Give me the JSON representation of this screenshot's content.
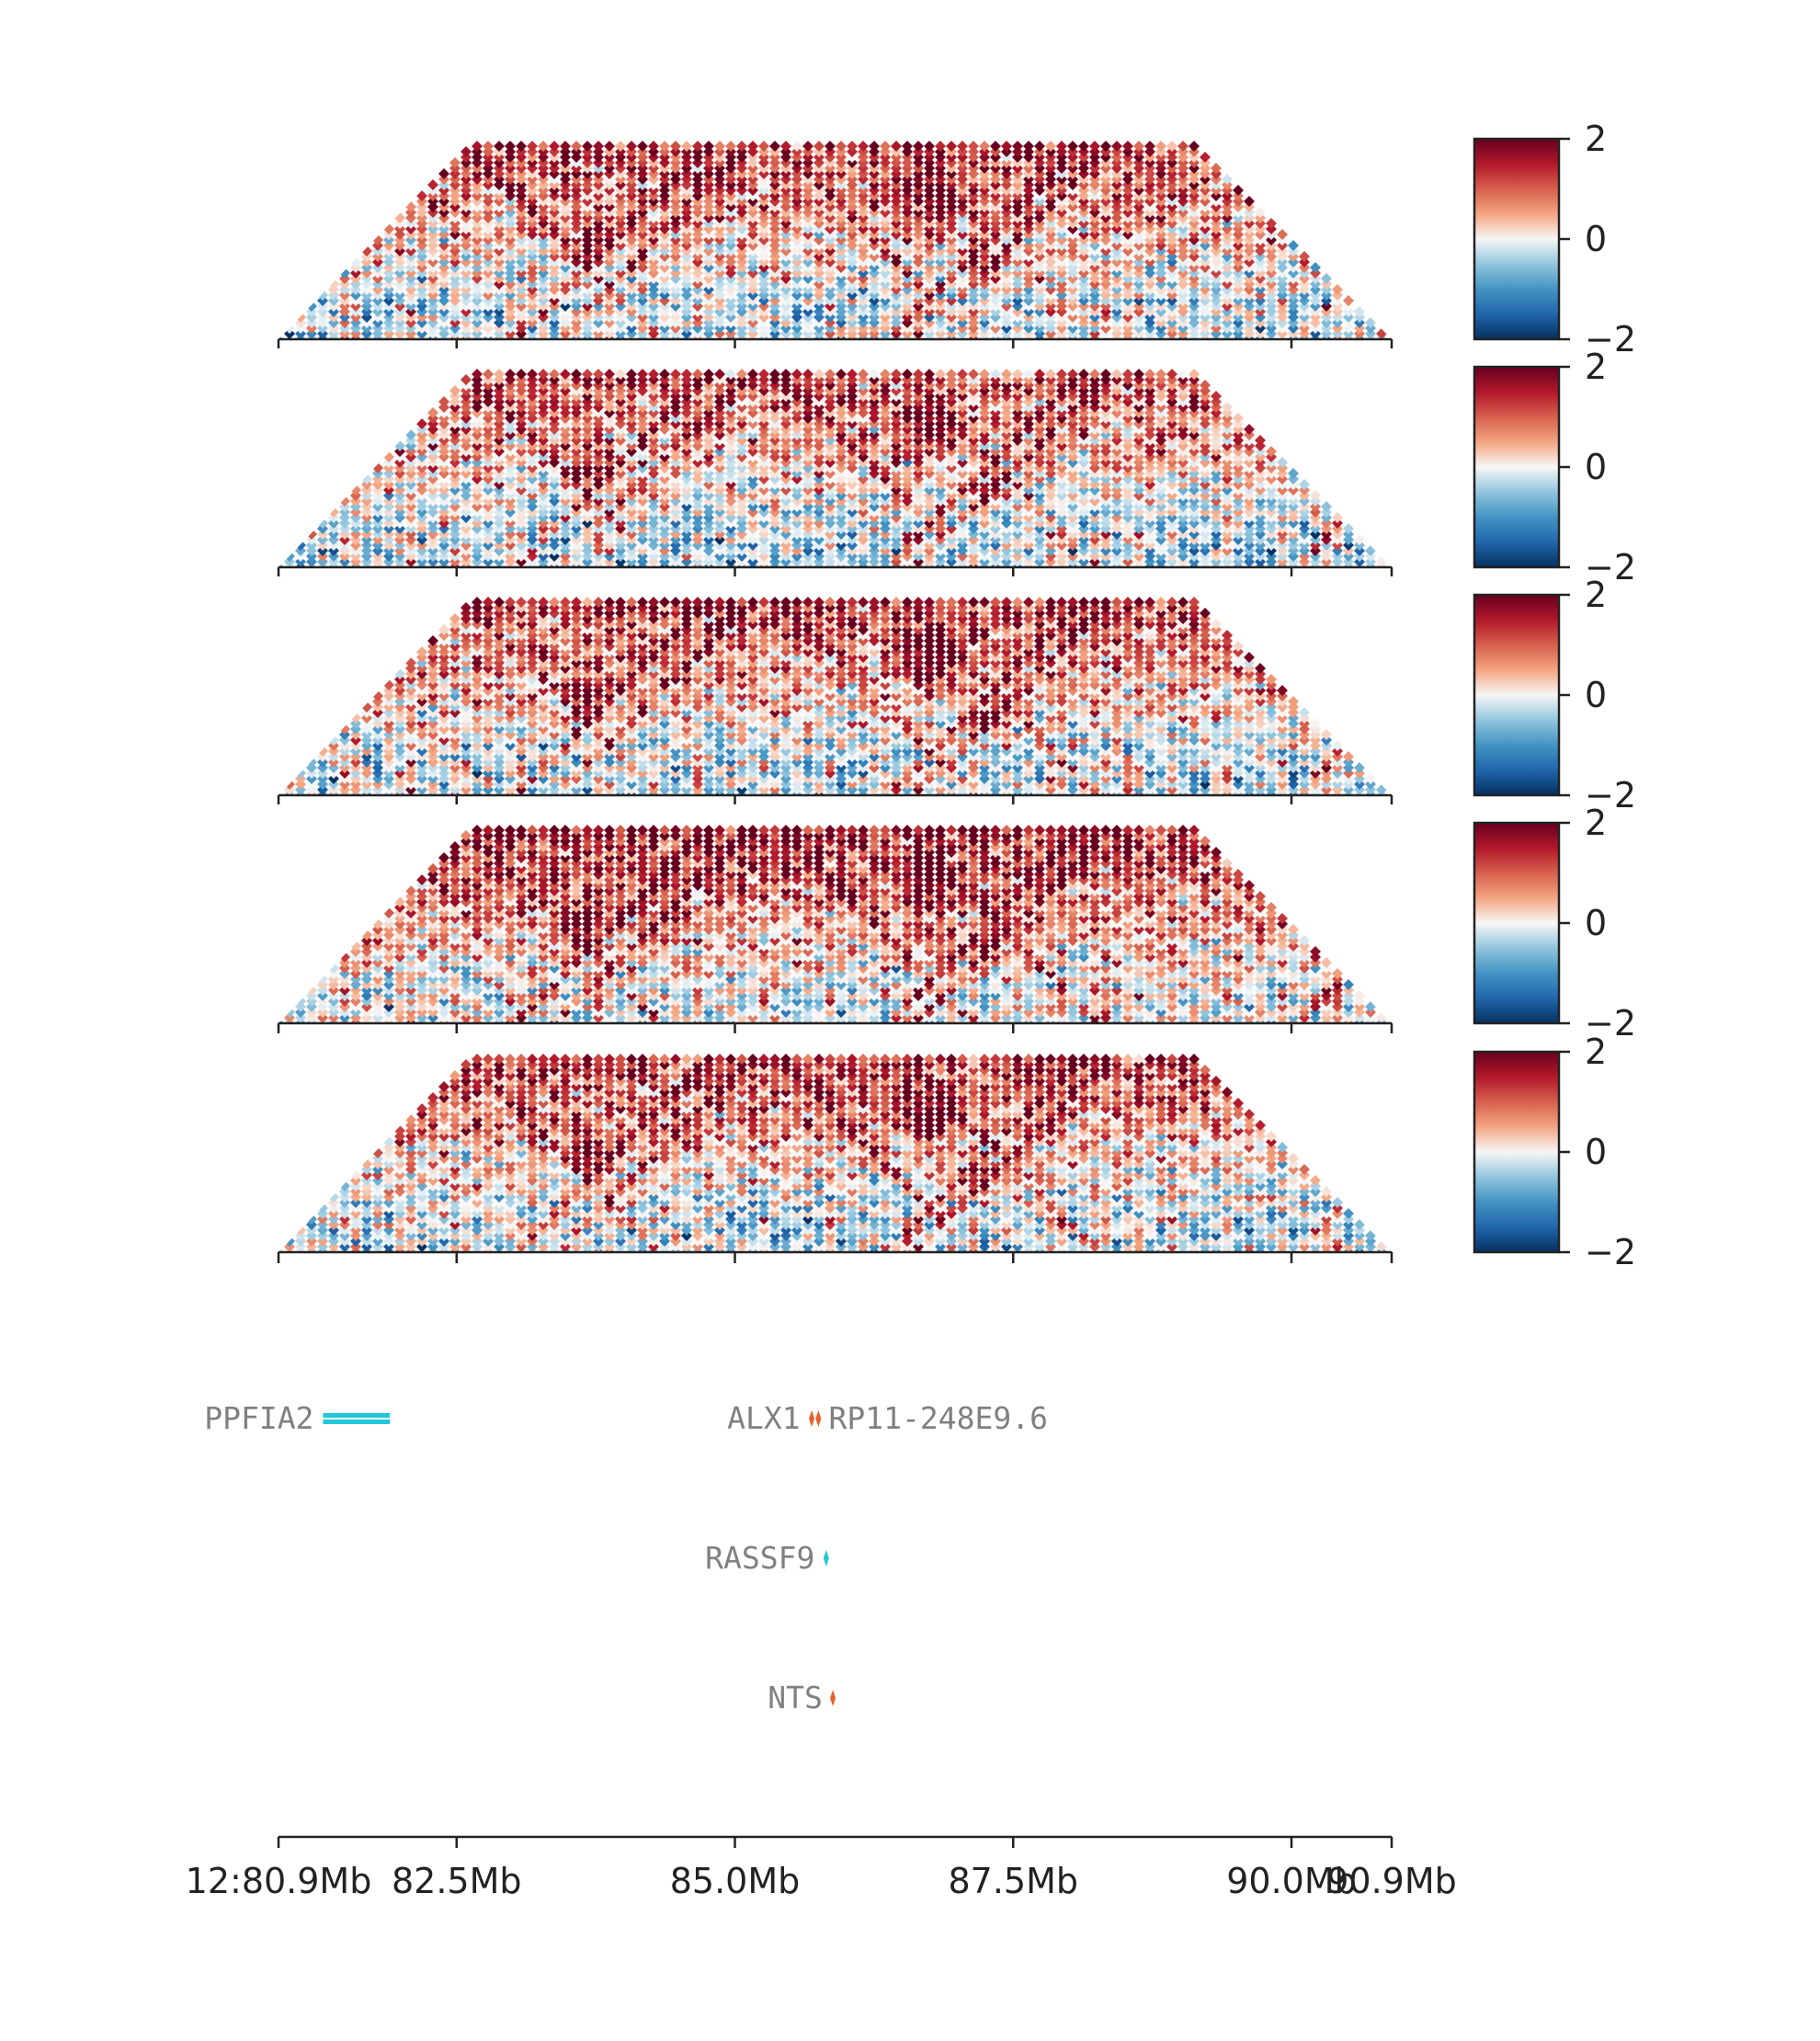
{
  "chart_data": {
    "type": "heatmap",
    "description": "Five stacked Hi-C contact heatmap panels (triangular, 45-degree rotated) over a shared genomic x-axis, with a gene annotation track below.",
    "colormap": "RdBu_r",
    "accent_colors": {
      "high": "#67001f",
      "mid": "#f7f7f7",
      "low": "#053061",
      "gene_plus": "#22c8d8",
      "gene_minus": "#e8612c"
    },
    "x_axis": {
      "unit": "Mb",
      "range": [
        80.9,
        90.9
      ],
      "ticks": [
        80.9,
        82.5,
        85.0,
        87.5,
        90.0,
        90.9
      ],
      "tick_labels": [
        "12:80.9Mb",
        "82.5Mb",
        "85.0Mb",
        "87.5Mb",
        "90.0Mb",
        "90.9Mb"
      ]
    },
    "panels": [
      {
        "vmin": -2,
        "vmax": 2,
        "colorbar_ticks": [
          "2",
          "0",
          "−2"
        ]
      },
      {
        "vmin": -2,
        "vmax": 2,
        "colorbar_ticks": [
          "2",
          "0",
          "−2"
        ]
      },
      {
        "vmin": -2,
        "vmax": 2,
        "colorbar_ticks": [
          "2",
          "0",
          "−2"
        ]
      },
      {
        "vmin": -2,
        "vmax": 2,
        "colorbar_ticks": [
          "2",
          "0",
          "−2"
        ]
      },
      {
        "vmin": -2,
        "vmax": 2,
        "colorbar_ticks": [
          "2",
          "0",
          "−2"
        ]
      }
    ],
    "genes": [
      {
        "name": "PPFIA2",
        "start": 81.3,
        "end": 81.9,
        "strand": "+",
        "row": 0
      },
      {
        "name": "ALX1",
        "start": 85.67,
        "end": 85.71,
        "strand": "-",
        "row": 0
      },
      {
        "name": "RP11-248E9.6",
        "start": 85.74,
        "end": 85.76,
        "strand": "-",
        "row": 0
      },
      {
        "name": "RASSF9",
        "start": 85.8,
        "end": 85.84,
        "strand": "+",
        "row": 1
      },
      {
        "name": "NTS",
        "start": 85.87,
        "end": 85.89,
        "strand": "-",
        "row": 2
      }
    ]
  }
}
